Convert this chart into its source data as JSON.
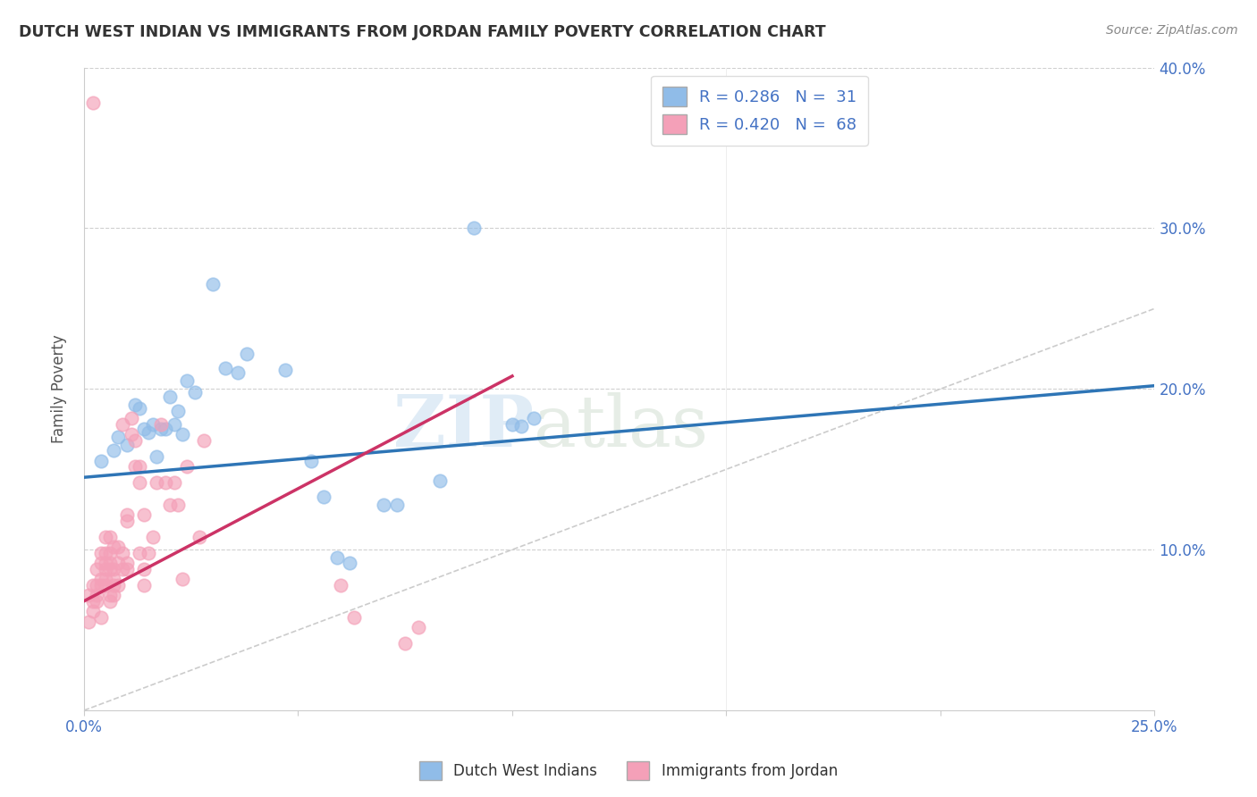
{
  "title": "DUTCH WEST INDIAN VS IMMIGRANTS FROM JORDAN FAMILY POVERTY CORRELATION CHART",
  "source": "Source: ZipAtlas.com",
  "ylabel": "Family Poverty",
  "xlim": [
    0,
    0.25
  ],
  "ylim": [
    0,
    0.4
  ],
  "xtick_vals": [
    0.0,
    0.05,
    0.1,
    0.15,
    0.2,
    0.25
  ],
  "xtick_labels": [
    "0.0%",
    "",
    "",
    "",
    "",
    "25.0%"
  ],
  "ytick_vals": [
    0.0,
    0.1,
    0.2,
    0.3,
    0.4
  ],
  "ytick_labels_right": [
    "",
    "10.0%",
    "20.0%",
    "30.0%",
    "40.0%"
  ],
  "legend_labels_bottom": [
    "Dutch West Indians",
    "Immigrants from Jordan"
  ],
  "blue_color": "#90bce8",
  "pink_color": "#f4a0b8",
  "blue_line_color": "#2e75b6",
  "pink_line_color": "#cc3366",
  "diagonal_color": "#cccccc",
  "watermark": "ZIPatlas",
  "blue_scatter": [
    [
      0.004,
      0.155
    ],
    [
      0.007,
      0.162
    ],
    [
      0.008,
      0.17
    ],
    [
      0.01,
      0.165
    ],
    [
      0.012,
      0.19
    ],
    [
      0.013,
      0.188
    ],
    [
      0.014,
      0.175
    ],
    [
      0.015,
      0.173
    ],
    [
      0.016,
      0.178
    ],
    [
      0.017,
      0.158
    ],
    [
      0.018,
      0.175
    ],
    [
      0.019,
      0.175
    ],
    [
      0.02,
      0.195
    ],
    [
      0.021,
      0.178
    ],
    [
      0.022,
      0.186
    ],
    [
      0.023,
      0.172
    ],
    [
      0.024,
      0.205
    ],
    [
      0.026,
      0.198
    ],
    [
      0.03,
      0.265
    ],
    [
      0.033,
      0.213
    ],
    [
      0.036,
      0.21
    ],
    [
      0.038,
      0.222
    ],
    [
      0.047,
      0.212
    ],
    [
      0.053,
      0.155
    ],
    [
      0.056,
      0.133
    ],
    [
      0.059,
      0.095
    ],
    [
      0.062,
      0.092
    ],
    [
      0.07,
      0.128
    ],
    [
      0.073,
      0.128
    ],
    [
      0.083,
      0.143
    ],
    [
      0.091,
      0.3
    ],
    [
      0.1,
      0.178
    ],
    [
      0.102,
      0.177
    ],
    [
      0.105,
      0.182
    ]
  ],
  "pink_scatter": [
    [
      0.001,
      0.055
    ],
    [
      0.001,
      0.072
    ],
    [
      0.002,
      0.078
    ],
    [
      0.002,
      0.062
    ],
    [
      0.002,
      0.068
    ],
    [
      0.003,
      0.078
    ],
    [
      0.003,
      0.068
    ],
    [
      0.003,
      0.088
    ],
    [
      0.003,
      0.072
    ],
    [
      0.004,
      0.092
    ],
    [
      0.004,
      0.078
    ],
    [
      0.004,
      0.098
    ],
    [
      0.004,
      0.058
    ],
    [
      0.004,
      0.082
    ],
    [
      0.005,
      0.088
    ],
    [
      0.005,
      0.098
    ],
    [
      0.005,
      0.108
    ],
    [
      0.005,
      0.092
    ],
    [
      0.005,
      0.082
    ],
    [
      0.005,
      0.078
    ],
    [
      0.006,
      0.088
    ],
    [
      0.006,
      0.098
    ],
    [
      0.006,
      0.108
    ],
    [
      0.006,
      0.072
    ],
    [
      0.006,
      0.092
    ],
    [
      0.006,
      0.068
    ],
    [
      0.007,
      0.078
    ],
    [
      0.007,
      0.088
    ],
    [
      0.007,
      0.102
    ],
    [
      0.007,
      0.082
    ],
    [
      0.007,
      0.072
    ],
    [
      0.008,
      0.102
    ],
    [
      0.008,
      0.078
    ],
    [
      0.008,
      0.092
    ],
    [
      0.009,
      0.178
    ],
    [
      0.009,
      0.088
    ],
    [
      0.009,
      0.098
    ],
    [
      0.01,
      0.122
    ],
    [
      0.01,
      0.118
    ],
    [
      0.01,
      0.092
    ],
    [
      0.01,
      0.088
    ],
    [
      0.011,
      0.182
    ],
    [
      0.011,
      0.172
    ],
    [
      0.012,
      0.152
    ],
    [
      0.012,
      0.168
    ],
    [
      0.013,
      0.152
    ],
    [
      0.013,
      0.098
    ],
    [
      0.013,
      0.142
    ],
    [
      0.014,
      0.122
    ],
    [
      0.014,
      0.088
    ],
    [
      0.014,
      0.078
    ],
    [
      0.015,
      0.098
    ],
    [
      0.016,
      0.108
    ],
    [
      0.017,
      0.142
    ],
    [
      0.018,
      0.178
    ],
    [
      0.019,
      0.142
    ],
    [
      0.02,
      0.128
    ],
    [
      0.021,
      0.142
    ],
    [
      0.022,
      0.128
    ],
    [
      0.023,
      0.082
    ],
    [
      0.024,
      0.152
    ],
    [
      0.027,
      0.108
    ],
    [
      0.028,
      0.168
    ],
    [
      0.002,
      0.378
    ],
    [
      0.06,
      0.078
    ],
    [
      0.063,
      0.058
    ],
    [
      0.075,
      0.042
    ],
    [
      0.078,
      0.052
    ]
  ],
  "blue_line_x": [
    0.0,
    0.25
  ],
  "blue_line_y_start": 0.145,
  "blue_line_y_end": 0.202,
  "pink_line_x": [
    0.0,
    0.1
  ],
  "pink_line_y_start": 0.068,
  "pink_line_y_end": 0.208
}
